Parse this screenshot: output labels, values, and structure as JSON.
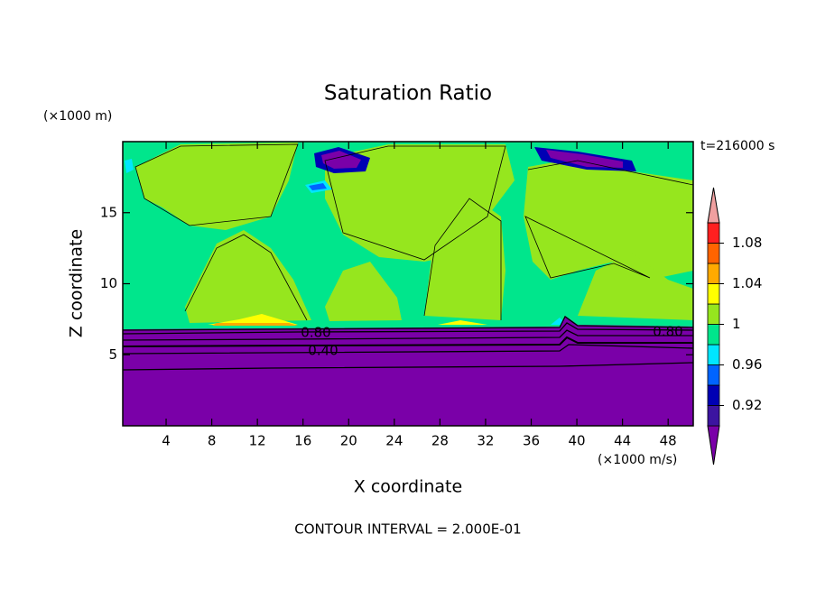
{
  "chart_data": {
    "type": "contour",
    "title": "Saturation Ratio",
    "x_label": "X coordinate",
    "y_label": "Z coordinate",
    "x_unit": "(×1000 m/s)",
    "y_unit": "(×1000 m)",
    "time_label": "t=216000 s",
    "footer": "CONTOUR INTERVAL = 2.000E-01",
    "xlim": [
      0.2,
      50.2
    ],
    "xticks": [
      4,
      8,
      12,
      16,
      20,
      24,
      28,
      32,
      36,
      40,
      44,
      48
    ],
    "ylim": [
      0,
      20
    ],
    "yticks": [
      5,
      10,
      15
    ],
    "contour_labels": [
      {
        "value": 0.8,
        "label": "0.80"
      },
      {
        "value": 0.4,
        "label": "0.40"
      },
      {
        "value": 0.8,
        "label": "0.80"
      }
    ],
    "colorbar": {
      "levels": [
        0.9,
        0.92,
        0.94,
        0.96,
        0.98,
        1,
        1.02,
        1.04,
        1.06,
        1.08,
        1.1
      ],
      "colors": [
        "#7a00a8",
        "#3c14a0",
        "#0000b4",
        "#0064ff",
        "#00e6ff",
        "#00e68c",
        "#96e61e",
        "#ffff00",
        "#ffaa00",
        "#ff6400",
        "#ff2020",
        "#f0a0a0"
      ],
      "ticks": [
        0.92,
        0.96,
        1,
        1.04,
        1.08
      ]
    }
  }
}
